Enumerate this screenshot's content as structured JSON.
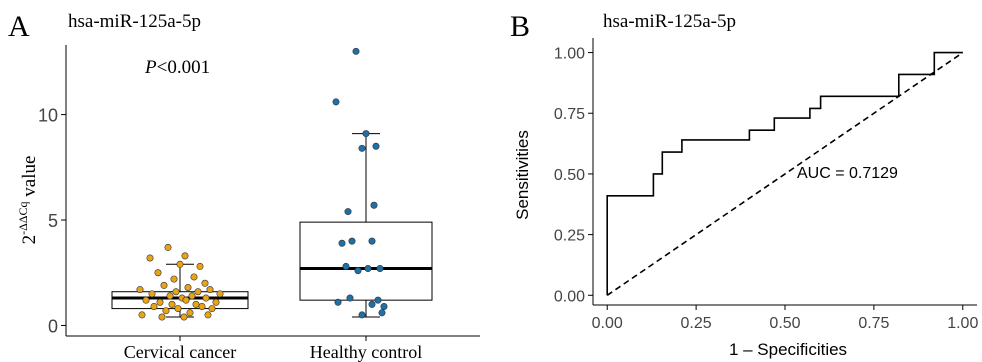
{
  "chart_data": [
    {
      "panel_label": "A",
      "type": "box",
      "title": "hsa-miR-125a-5p",
      "annotation": "P<0.001",
      "ylabel": "2-ΔΔCq value",
      "ylim": [
        -0.5,
        13.3
      ],
      "yticks": [
        0,
        5,
        10
      ],
      "grid": false,
      "categories": [
        "Cervical cancer",
        "Healthy control"
      ],
      "series": [
        {
          "category": "Cervical cancer",
          "color": "#E8A317",
          "box": {
            "whisker_low": 0.4,
            "q1": 0.8,
            "median": 1.3,
            "q3": 1.6,
            "whisker_high": 2.9
          },
          "points": [
            3.7,
            3.3,
            3.2,
            2.9,
            2.8,
            2.5,
            2.3,
            2.2,
            2.0,
            1.9,
            1.8,
            1.7,
            1.7,
            1.6,
            1.6,
            1.5,
            1.5,
            1.4,
            1.4,
            1.3,
            1.3,
            1.2,
            1.2,
            1.1,
            1.1,
            1.0,
            1.0,
            0.9,
            0.9,
            0.8,
            0.8,
            0.7,
            0.6,
            0.5,
            0.5,
            0.4,
            0.4
          ]
        },
        {
          "category": "Healthy control",
          "color": "#1F6FA8",
          "box": {
            "whisker_low": 0.4,
            "q1": 1.2,
            "median": 2.7,
            "q3": 4.9,
            "whisker_high": 9.1
          },
          "points": [
            13.0,
            10.6,
            9.1,
            8.5,
            8.4,
            5.7,
            5.4,
            4.0,
            4.0,
            3.9,
            2.8,
            2.7,
            2.7,
            2.6,
            1.3,
            1.2,
            1.1,
            1.0,
            0.9,
            0.6,
            0.5
          ]
        }
      ]
    },
    {
      "panel_label": "B",
      "type": "line",
      "title": "hsa-miR-125a-5p",
      "annotation": "AUC = 0.7129",
      "xlabel": "1 – Specificities",
      "ylabel": "Sensitivities",
      "xlim": [
        -0.04,
        1.04
      ],
      "ylim": [
        -0.04,
        1.06
      ],
      "xticks": [
        "0.00",
        "0.25",
        "0.50",
        "0.75",
        "1.00"
      ],
      "yticks": [
        "0.00",
        "0.25",
        "0.50",
        "0.75",
        "1.00"
      ],
      "grid": false,
      "series": [
        {
          "style": "solid",
          "x": [
            0.0,
            0.0,
            0.13,
            0.13,
            0.155,
            0.155,
            0.21,
            0.21,
            0.4,
            0.4,
            0.47,
            0.47,
            0.57,
            0.57,
            0.6,
            0.6,
            0.82,
            0.82,
            0.92,
            0.92,
            1.0
          ],
          "y": [
            0.0,
            0.41,
            0.41,
            0.5,
            0.5,
            0.59,
            0.59,
            0.64,
            0.64,
            0.68,
            0.68,
            0.73,
            0.73,
            0.77,
            0.77,
            0.82,
            0.82,
            0.91,
            0.91,
            1.0,
            1.0
          ]
        },
        {
          "style": "dashed",
          "x": [
            0.0,
            1.0
          ],
          "y": [
            0.0,
            1.0
          ]
        }
      ]
    }
  ]
}
